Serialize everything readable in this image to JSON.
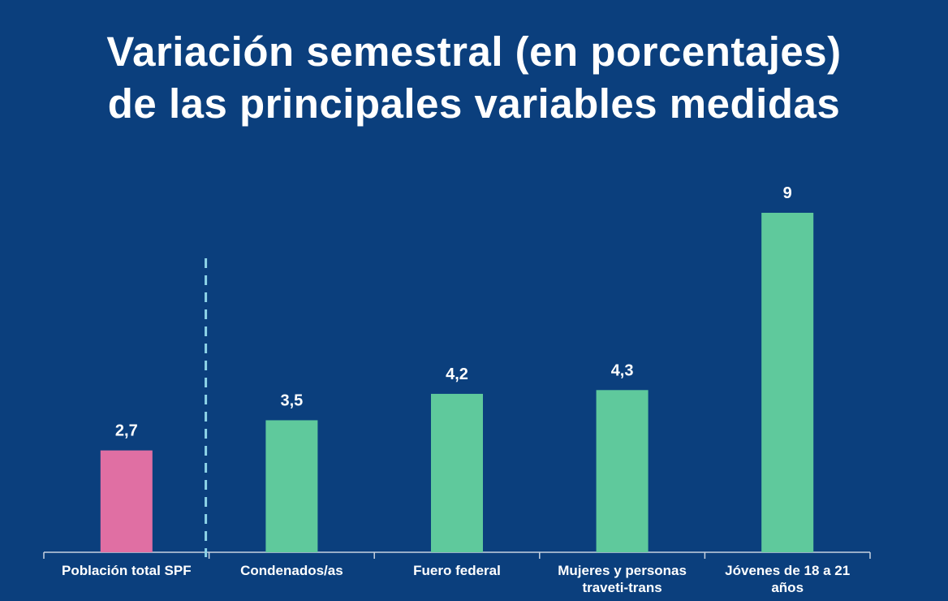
{
  "chart_data": {
    "type": "bar",
    "title_lines": [
      "Variación semestral (en porcentajes)",
      "de las principales variables medidas"
    ],
    "categories": [
      [
        "Población total SPF"
      ],
      [
        "Condenados/as"
      ],
      [
        "Fuero federal"
      ],
      [
        "Mujeres y personas",
        "traveti-trans"
      ],
      [
        "Jóvenes de 18 a 21",
        "años"
      ]
    ],
    "values": [
      2.7,
      3.5,
      4.2,
      4.3,
      9
    ],
    "data_labels": [
      "2,7",
      "3,5",
      "4,2",
      "4,3",
      "9"
    ],
    "colors": [
      "#e06fa3",
      "#5fc99c",
      "#5fc99c",
      "#5fc99c",
      "#5fc99c"
    ],
    "divider_after_category": 1,
    "divider_color": "#8ed4e8",
    "axis_color": "#c8d2e0",
    "ylim": [
      0,
      10
    ],
    "xlabel": "",
    "ylabel": "",
    "grid": false
  }
}
